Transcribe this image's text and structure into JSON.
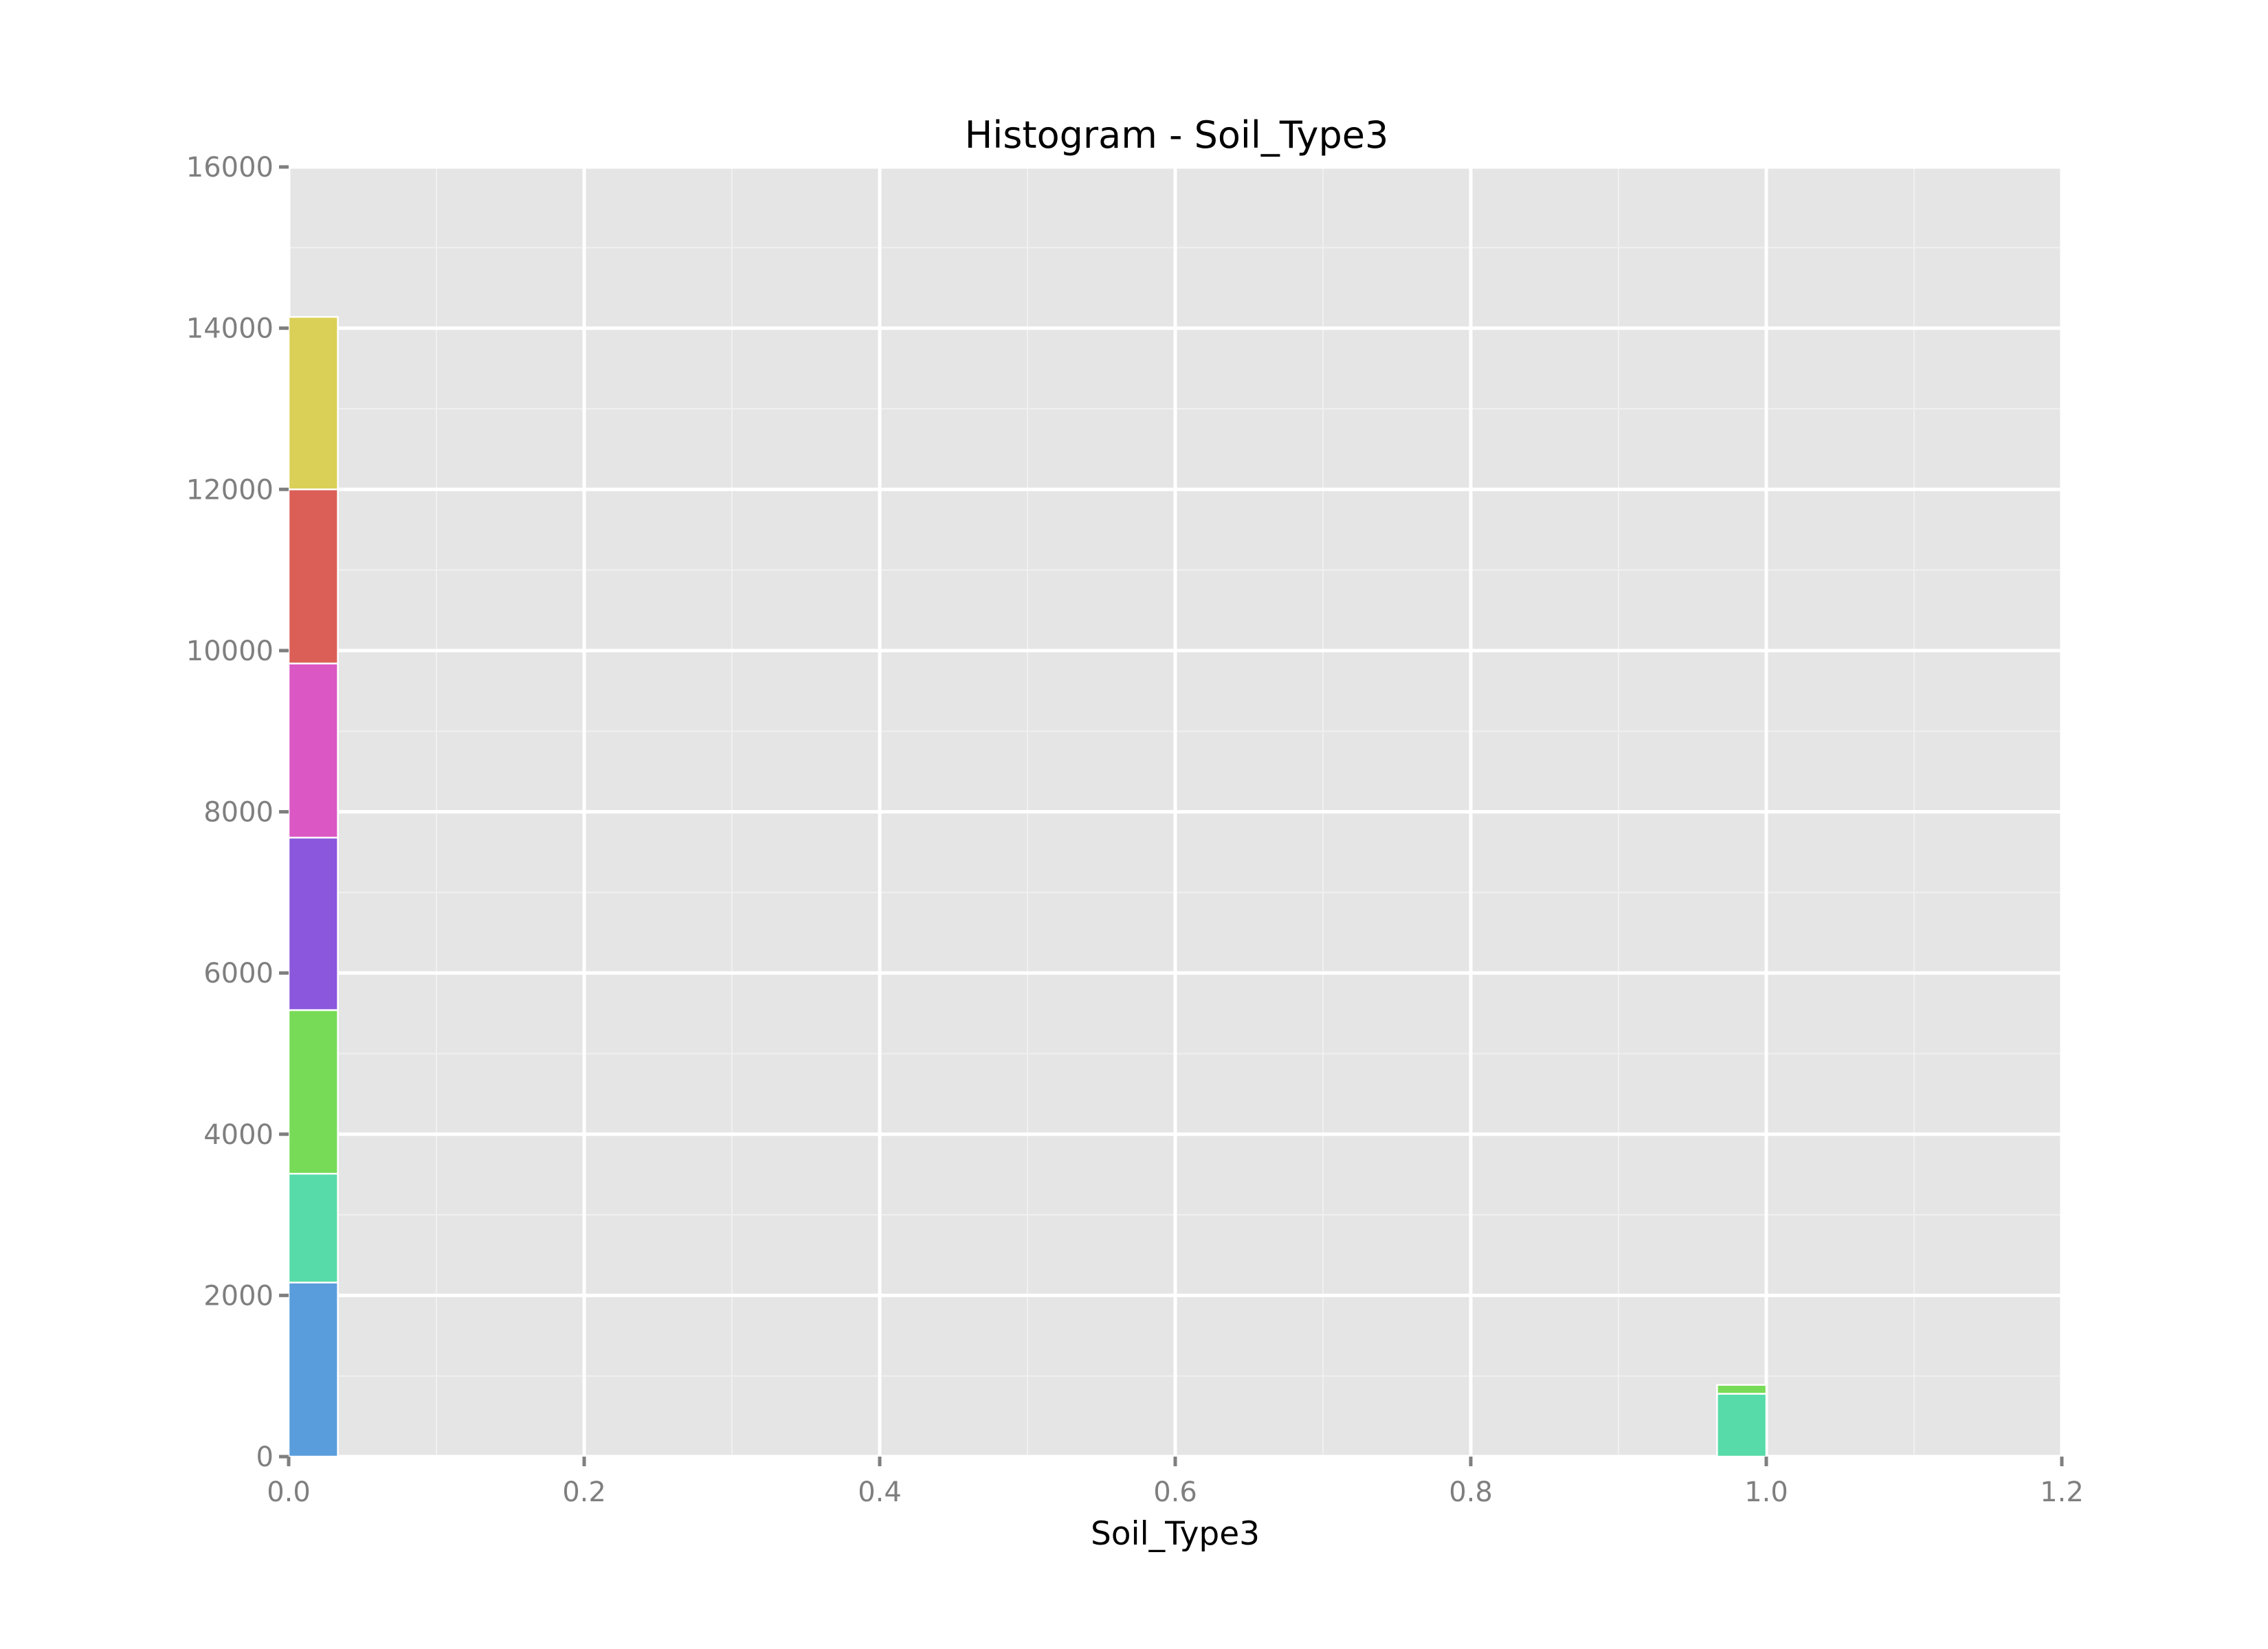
{
  "chart_data": {
    "type": "bar",
    "title": "Histogram - Soil_Type3",
    "xlabel": "Soil_Type3",
    "ylabel": "",
    "xlim": [
      0.0,
      1.2
    ],
    "ylim": [
      0,
      16000
    ],
    "x_ticks": [
      "0.0",
      "0.2",
      "0.4",
      "0.6",
      "0.8",
      "1.0",
      "1.2"
    ],
    "y_ticks": [
      "0",
      "2000",
      "4000",
      "6000",
      "8000",
      "10000",
      "12000",
      "14000",
      "16000"
    ],
    "grid": true,
    "legend": "none",
    "bin_width": 0.0333,
    "bins": [
      {
        "x_start": 0.0,
        "segments": [
          {
            "value": 2160,
            "color": "#5a9ddd"
          },
          {
            "value": 1350,
            "color": "#57dba8"
          },
          {
            "value": 2030,
            "color": "#78db57"
          },
          {
            "value": 2140,
            "color": "#8a57dd"
          },
          {
            "value": 2160,
            "color": "#db57c4"
          },
          {
            "value": 2160,
            "color": "#db5f57"
          },
          {
            "value": 2140,
            "color": "#dbd057"
          }
        ]
      },
      {
        "x_start": 0.9667,
        "segments": [
          {
            "value": 780,
            "color": "#57dba8"
          },
          {
            "value": 110,
            "color": "#78db57"
          }
        ]
      }
    ],
    "colors": {
      "panel_background": "#e5e5e5",
      "major_grid": "#ffffff",
      "minor_grid": "#f0f0f0",
      "tick_color": "#7f7f7f"
    }
  }
}
